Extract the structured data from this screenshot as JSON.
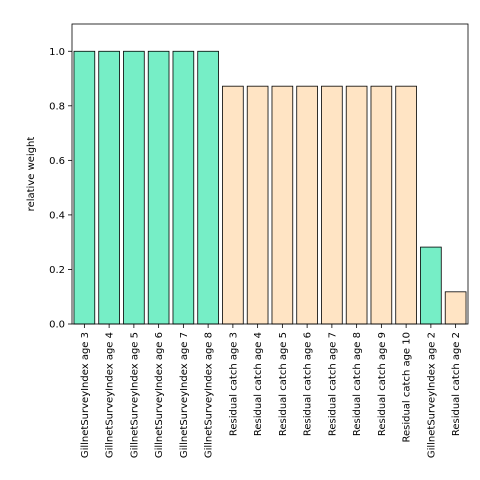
{
  "chart_data": {
    "type": "bar",
    "title": "",
    "xlabel": "",
    "ylabel": "relative weight",
    "ylim": [
      0,
      1.1
    ],
    "yticks": [
      0.0,
      0.2,
      0.4,
      0.6,
      0.8,
      1.0
    ],
    "ytick_labels": [
      "0.0",
      "0.2",
      "0.4",
      "0.6",
      "0.8",
      "1.0"
    ],
    "grid": false,
    "legend": "none",
    "colors": {
      "gillnet": "#76eec6",
      "residual": "#ffe4c4",
      "edge": "#000000"
    },
    "categories": [
      "GillnetSurveyIndex age 3",
      "GillnetSurveyIndex age 4",
      "GillnetSurveyIndex age 5",
      "GillnetSurveyIndex age 6",
      "GillnetSurveyIndex age 7",
      "GillnetSurveyIndex age 8",
      "Residual catch age 3",
      "Residual catch age 4",
      "Residual catch age 5",
      "Residual catch age 6",
      "Residual catch age 7",
      "Residual catch age 8",
      "Residual catch age 9",
      "Residual catch age 10",
      "GillnetSurveyIndex age 2",
      "Residual catch age 2"
    ],
    "values": [
      1.0,
      1.0,
      1.0,
      1.0,
      1.0,
      1.0,
      0.872,
      0.872,
      0.872,
      0.872,
      0.872,
      0.872,
      0.872,
      0.872,
      0.282,
      0.118
    ],
    "groups": [
      "gillnet",
      "gillnet",
      "gillnet",
      "gillnet",
      "gillnet",
      "gillnet",
      "residual",
      "residual",
      "residual",
      "residual",
      "residual",
      "residual",
      "residual",
      "residual",
      "gillnet",
      "residual"
    ]
  }
}
